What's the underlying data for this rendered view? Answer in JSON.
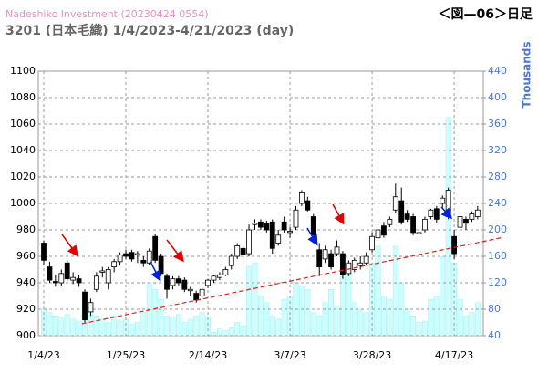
{
  "chart_data": {
    "type": "candlestick",
    "title": "Nadeshiko Investment (20230424 0554)",
    "subtitle": "3201 (日本毛織) 1/4/2023-4/21/2023 (day)",
    "header_right": "＜図—06＞日足",
    "y2_label": "Thousands",
    "categories": [
      "1/4/23",
      null,
      null,
      null,
      null,
      null,
      null,
      null,
      null,
      null,
      null,
      null,
      null,
      null,
      "1/25/23",
      null,
      null,
      null,
      null,
      null,
      null,
      null,
      null,
      null,
      null,
      null,
      null,
      null,
      "2/14/23",
      null,
      null,
      null,
      null,
      null,
      null,
      null,
      null,
      null,
      null,
      null,
      null,
      null,
      "3/7/23",
      null,
      null,
      null,
      null,
      null,
      null,
      null,
      null,
      null,
      null,
      null,
      null,
      null,
      "3/28/23",
      null,
      null,
      null,
      null,
      null,
      null,
      null,
      null,
      null,
      null,
      null,
      null,
      null,
      "4/17/23",
      null,
      null,
      null,
      null
    ],
    "open": [
      970,
      952,
      941,
      940,
      955,
      942,
      943,
      933,
      918,
      935,
      948,
      940,
      952,
      956,
      962,
      963,
      961,
      957,
      955,
      975,
      960,
      945,
      938,
      943,
      942,
      934,
      932,
      930,
      938,
      942,
      944,
      946,
      953,
      960,
      966,
      962,
      984,
      986,
      985,
      986,
      970,
      986,
      978,
      982,
      1000,
      1002,
      990,
      965,
      958,
      962,
      962,
      962,
      947,
      950,
      953,
      955,
      965,
      974,
      983,
      984,
      995,
      1002,
      992,
      990,
      977,
      980,
      990,
      996,
      1000,
      990,
      975,
      982,
      988,
      988,
      990
    ],
    "high": [
      972,
      956,
      946,
      950,
      957,
      948,
      946,
      935,
      928,
      948,
      952,
      952,
      958,
      963,
      965,
      965,
      964,
      960,
      966,
      977,
      962,
      947,
      945,
      945,
      944,
      937,
      934,
      936,
      943,
      946,
      948,
      952,
      962,
      970,
      968,
      984,
      988,
      988,
      987,
      988,
      980,
      990,
      982,
      998,
      1010,
      1005,
      992,
      970,
      968,
      965,
      972,
      964,
      957,
      959,
      960,
      963,
      978,
      984,
      986,
      990,
      1015,
      1012,
      995,
      992,
      982,
      990,
      996,
      998,
      1006,
      1012,
      980,
      992,
      990,
      994,
      998
    ],
    "low": [
      953,
      940,
      937,
      938,
      941,
      939,
      937,
      910,
      915,
      933,
      944,
      935,
      948,
      953,
      958,
      956,
      955,
      952,
      953,
      955,
      945,
      928,
      935,
      938,
      933,
      930,
      925,
      928,
      936,
      940,
      942,
      945,
      950,
      958,
      958,
      960,
      980,
      980,
      978,
      962,
      968,
      978,
      974,
      980,
      998,
      994,
      974,
      945,
      955,
      950,
      960,
      943,
      945,
      948,
      950,
      953,
      963,
      972,
      974,
      982,
      993,
      984,
      986,
      976,
      975,
      978,
      988,
      985,
      996,
      988,
      958,
      980,
      980,
      986,
      988
    ],
    "close": [
      957,
      942,
      940,
      947,
      943,
      944,
      940,
      912,
      925,
      945,
      949,
      950,
      956,
      961,
      960,
      958,
      962,
      955,
      964,
      957,
      947,
      935,
      943,
      940,
      935,
      935,
      927,
      935,
      942,
      945,
      946,
      950,
      960,
      968,
      961,
      980,
      985,
      982,
      980,
      966,
      976,
      980,
      979,
      995,
      1008,
      995,
      976,
      952,
      965,
      952,
      967,
      946,
      955,
      957,
      955,
      960,
      975,
      980,
      976,
      988,
      1005,
      986,
      988,
      978,
      978,
      988,
      995,
      988,
      1004,
      1010,
      962,
      990,
      985,
      992,
      995
    ],
    "volume": [
      80,
      75,
      70,
      68,
      72,
      65,
      62,
      90,
      85,
      70,
      65,
      60,
      70,
      62,
      65,
      58,
      60,
      75,
      120,
      110,
      95,
      70,
      68,
      72,
      60,
      65,
      70,
      75,
      68,
      45,
      50,
      48,
      52,
      60,
      55,
      145,
      150,
      100,
      90,
      70,
      65,
      95,
      100,
      120,
      115,
      110,
      75,
      70,
      90,
      110,
      85,
      130,
      140,
      90,
      80,
      75,
      150,
      175,
      100,
      95,
      175,
      120,
      80,
      70,
      60,
      62,
      95,
      100,
      160,
      370,
      150,
      95,
      70,
      75,
      90
    ],
    "ylim": [
      900,
      1100
    ],
    "yticks": [
      900,
      920,
      940,
      960,
      980,
      1000,
      1020,
      1040,
      1060,
      1080,
      1100
    ],
    "y2lim": [
      40,
      440
    ],
    "y2ticks": [
      40,
      80,
      120,
      160,
      200,
      240,
      280,
      320,
      360,
      400,
      440
    ],
    "grid": true,
    "up_color": "#ffffff",
    "down_color": "#000000",
    "volume_color": "#ccffff",
    "trendline": {
      "x": [
        6.5,
        78
      ],
      "y": [
        909,
        974
      ],
      "color": "#e02020"
    }
  }
}
